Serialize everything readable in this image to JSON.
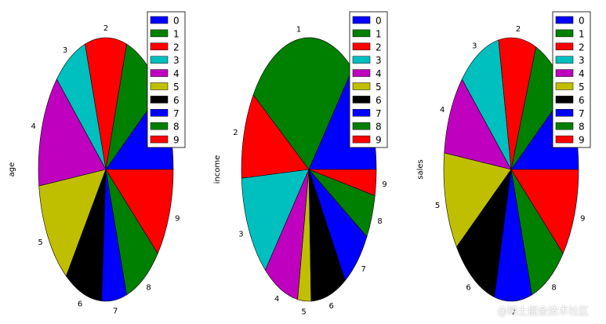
{
  "colors": [
    "#0000ff",
    "#008000",
    "#ff0000",
    "#00bfbf",
    "#bf00bf",
    "#bfbf00",
    "#000000",
    "#0000ff",
    "#008000",
    "#ff0000"
  ],
  "watermark": "@稀土掘金技术社区",
  "chart_data": [
    {
      "type": "pie",
      "ylabel": "age",
      "labels": [
        "0",
        "1",
        "2",
        "3",
        "4",
        "5",
        "6",
        "7",
        "8",
        "9"
      ],
      "values": [
        10,
        10,
        10,
        8,
        14,
        13,
        9,
        6,
        9,
        11
      ],
      "start_angle_deg": 0,
      "direction": "counterclockwise",
      "legend": {
        "entries": [
          "0",
          "1",
          "2",
          "3",
          "4",
          "5",
          "6",
          "7",
          "8",
          "9"
        ],
        "placement": "top-right"
      }
    },
    {
      "type": "pie",
      "ylabel": "income",
      "labels": [
        "0",
        "1",
        "2",
        "3",
        "4",
        "5",
        "6",
        "7",
        "8",
        "9"
      ],
      "values": [
        13,
        25,
        10,
        12,
        8,
        3,
        8,
        7,
        5,
        3
      ],
      "start_angle_deg": 0,
      "direction": "counterclockwise",
      "legend": {
        "entries": [
          "0",
          "1",
          "2",
          "3",
          "4",
          "5",
          "6",
          "7",
          "8",
          "9"
        ],
        "placement": "top-right"
      }
    },
    {
      "type": "pie",
      "ylabel": "sales",
      "labels": [
        "0",
        "1",
        "2",
        "3",
        "4",
        "5",
        "6",
        "7",
        "8",
        "9"
      ],
      "values": [
        10,
        9,
        9,
        10,
        10,
        12,
        11,
        9,
        9,
        11
      ],
      "start_angle_deg": 0,
      "direction": "counterclockwise",
      "legend": {
        "entries": [
          "0",
          "1",
          "2",
          "3",
          "4",
          "5",
          "6",
          "7",
          "8",
          "9"
        ],
        "placement": "top-right"
      }
    }
  ]
}
